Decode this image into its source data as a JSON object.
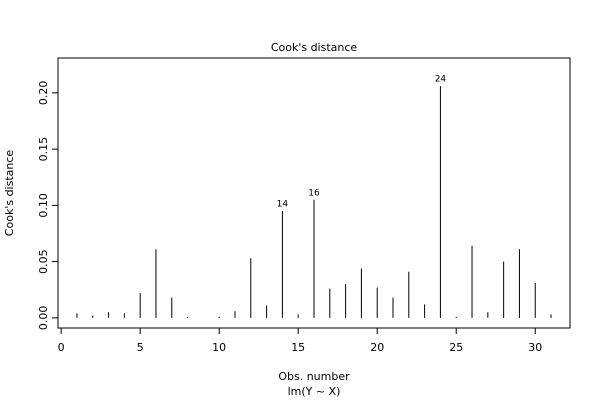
{
  "chart_data": {
    "type": "bar",
    "title": "Cook's distance",
    "ylabel": "Cook's distance",
    "xlabel": "Obs. number",
    "subtitle": "lm(Y ~ X)",
    "x": [
      1,
      2,
      3,
      4,
      5,
      6,
      7,
      8,
      9,
      10,
      11,
      12,
      13,
      14,
      15,
      16,
      17,
      18,
      19,
      20,
      21,
      22,
      23,
      24,
      25,
      26,
      27,
      28,
      29,
      30,
      31
    ],
    "values": [
      0.004,
      0.002,
      0.005,
      0.004,
      0.022,
      0.061,
      0.018,
      0.001,
      0.0,
      0.001,
      0.006,
      0.053,
      0.011,
      0.095,
      0.003,
      0.105,
      0.026,
      0.03,
      0.044,
      0.027,
      0.018,
      0.041,
      0.012,
      0.206,
      0.001,
      0.064,
      0.005,
      0.05,
      0.061,
      0.031,
      0.003
    ],
    "labeled": [
      14,
      16,
      24
    ],
    "color": "#000000",
    "xlim": [
      -0.2,
      32.2
    ],
    "xticks": [
      0,
      5,
      10,
      15,
      20,
      25,
      30
    ],
    "ylim": [
      -0.009,
      0.231
    ],
    "yticks": [
      {
        "value": 0,
        "label": "0.00"
      },
      {
        "value": 0.05,
        "label": "0.05"
      },
      {
        "value": 0.1,
        "label": "0.10"
      },
      {
        "value": 0.15,
        "label": "0.15"
      },
      {
        "value": 0.2,
        "label": "0.20"
      }
    ]
  }
}
